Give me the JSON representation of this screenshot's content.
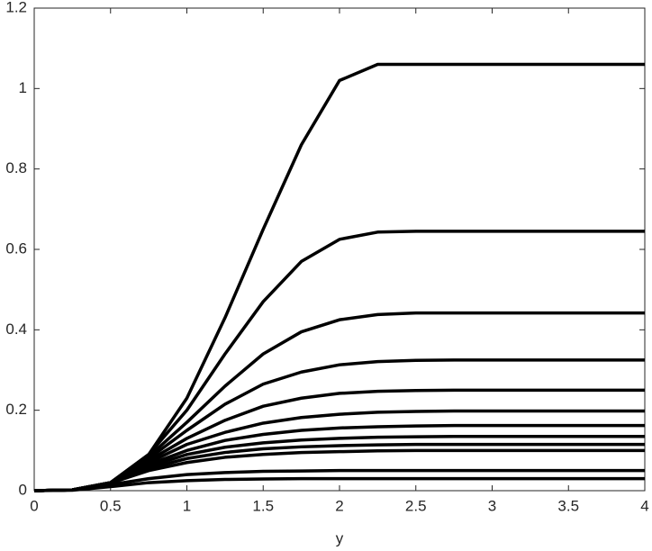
{
  "chart_data": {
    "type": "line",
    "x_label": "y",
    "x": [
      0,
      0.25,
      0.5,
      0.75,
      1,
      1.25,
      1.5,
      1.75,
      2,
      2.25,
      2.5,
      2.75,
      3,
      3.25,
      3.5,
      3.75,
      4
    ],
    "series": [
      {
        "color": "#000000",
        "values": [
          0,
          0.002,
          0.02,
          0.09,
          0.23,
          0.43,
          0.65,
          0.86,
          1.02,
          1.06,
          1.06,
          1.06,
          1.06,
          1.06,
          1.06,
          1.06,
          1.06
        ]
      },
      {
        "color": "#000000",
        "values": [
          0,
          0.002,
          0.02,
          0.09,
          0.2,
          0.34,
          0.47,
          0.57,
          0.625,
          0.643,
          0.645,
          0.645,
          0.645,
          0.645,
          0.645,
          0.645,
          0.645
        ]
      },
      {
        "color": "#000000",
        "values": [
          0,
          0.002,
          0.02,
          0.085,
          0.17,
          0.26,
          0.34,
          0.395,
          0.425,
          0.438,
          0.442,
          0.442,
          0.442,
          0.442,
          0.442,
          0.442,
          0.442
        ]
      },
      {
        "color": "#000000",
        "values": [
          0,
          0.002,
          0.02,
          0.08,
          0.15,
          0.215,
          0.265,
          0.295,
          0.313,
          0.321,
          0.324,
          0.325,
          0.325,
          0.325,
          0.325,
          0.325,
          0.325
        ]
      },
      {
        "color": "#000000",
        "values": [
          0,
          0.002,
          0.02,
          0.075,
          0.13,
          0.175,
          0.21,
          0.23,
          0.242,
          0.247,
          0.249,
          0.25,
          0.25,
          0.25,
          0.25,
          0.25,
          0.25
        ]
      },
      {
        "color": "#000000",
        "values": [
          0,
          0.002,
          0.02,
          0.07,
          0.115,
          0.145,
          0.168,
          0.182,
          0.19,
          0.195,
          0.197,
          0.198,
          0.198,
          0.198,
          0.198,
          0.198,
          0.198
        ]
      },
      {
        "color": "#000000",
        "values": [
          0,
          0.002,
          0.02,
          0.065,
          0.1,
          0.125,
          0.14,
          0.15,
          0.156,
          0.159,
          0.161,
          0.162,
          0.162,
          0.162,
          0.162,
          0.162,
          0.162
        ]
      },
      {
        "color": "#000000",
        "values": [
          0,
          0.002,
          0.02,
          0.06,
          0.09,
          0.108,
          0.119,
          0.126,
          0.13,
          0.133,
          0.134,
          0.135,
          0.135,
          0.135,
          0.135,
          0.135,
          0.135
        ]
      },
      {
        "color": "#000000",
        "values": [
          0,
          0.002,
          0.02,
          0.055,
          0.08,
          0.095,
          0.104,
          0.109,
          0.112,
          0.114,
          0.115,
          0.115,
          0.115,
          0.115,
          0.115,
          0.115,
          0.115
        ]
      },
      {
        "color": "#000000",
        "values": [
          0,
          0.002,
          0.019,
          0.05,
          0.07,
          0.083,
          0.09,
          0.095,
          0.097,
          0.099,
          0.1,
          0.1,
          0.1,
          0.1,
          0.1,
          0.1,
          0.1
        ]
      },
      {
        "color": "#000000",
        "values": [
          0,
          0.002,
          0.015,
          0.03,
          0.04,
          0.045,
          0.048,
          0.049,
          0.05,
          0.05,
          0.05,
          0.05,
          0.05,
          0.05,
          0.05,
          0.05,
          0.05
        ]
      },
      {
        "color": "#000000",
        "values": [
          0,
          0.001,
          0.01,
          0.02,
          0.025,
          0.028,
          0.029,
          0.03,
          0.03,
          0.03,
          0.03,
          0.03,
          0.03,
          0.03,
          0.03,
          0.03,
          0.03
        ]
      }
    ],
    "xlim": [
      0,
      4
    ],
    "ylim": [
      0,
      1.2
    ],
    "xticks": [
      0,
      0.5,
      1,
      1.5,
      2,
      2.5,
      3,
      3.5,
      4
    ],
    "yticks": [
      0,
      0.2,
      0.4,
      0.6,
      0.8,
      1,
      1.2
    ],
    "grid": false
  }
}
